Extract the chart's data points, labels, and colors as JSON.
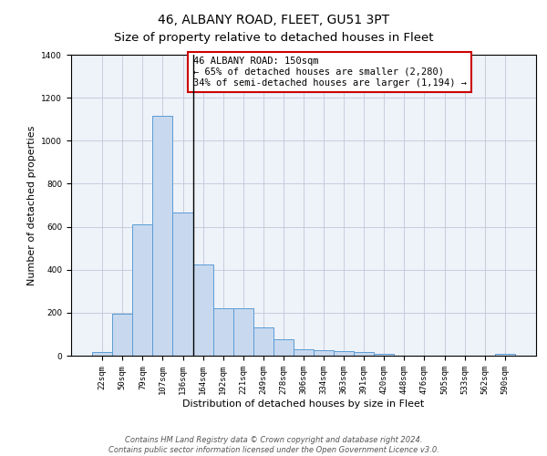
{
  "title": "46, ALBANY ROAD, FLEET, GU51 3PT",
  "subtitle": "Size of property relative to detached houses in Fleet",
  "xlabel": "Distribution of detached houses by size in Fleet",
  "ylabel": "Number of detached properties",
  "categories": [
    "22sqm",
    "50sqm",
    "79sqm",
    "107sqm",
    "136sqm",
    "164sqm",
    "192sqm",
    "221sqm",
    "249sqm",
    "278sqm",
    "306sqm",
    "334sqm",
    "363sqm",
    "391sqm",
    "420sqm",
    "448sqm",
    "476sqm",
    "505sqm",
    "533sqm",
    "562sqm",
    "590sqm"
  ],
  "values": [
    15,
    195,
    610,
    1115,
    665,
    425,
    220,
    220,
    130,
    75,
    28,
    25,
    20,
    15,
    10,
    0,
    0,
    0,
    0,
    0,
    10
  ],
  "bar_color": "#c8d9ef",
  "bar_edge_color": "#5b9bd5",
  "vline_x": 4.5,
  "vline_color": "#000000",
  "annotation_text": "46 ALBANY ROAD: 150sqm\n← 65% of detached houses are smaller (2,280)\n34% of semi-detached houses are larger (1,194) →",
  "annotation_box_color": "#ffffff",
  "annotation_box_edge": "#cc0000",
  "ylim": [
    0,
    1400
  ],
  "yticks": [
    0,
    200,
    400,
    600,
    800,
    1000,
    1200,
    1400
  ],
  "bg_color": "#eef2f9",
  "footer": "Contains HM Land Registry data © Crown copyright and database right 2024.\nContains public sector information licensed under the Open Government Licence v3.0.",
  "title_fontsize": 10,
  "ylabel_fontsize": 8,
  "xlabel_fontsize": 8,
  "tick_fontsize": 6.5,
  "annotation_fontsize": 7.5,
  "footer_fontsize": 6
}
